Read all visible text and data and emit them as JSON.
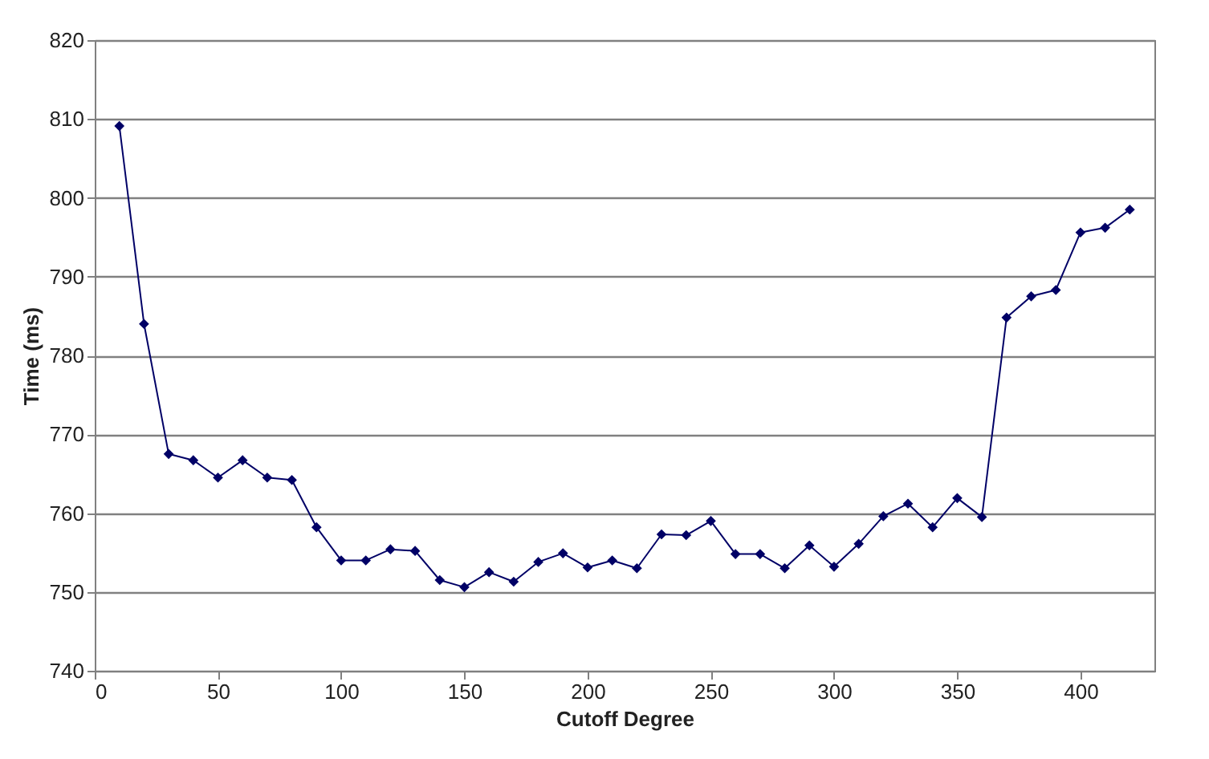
{
  "chart_data": {
    "type": "line",
    "xlabel": "Cutoff Degree",
    "ylabel": "Time (ms)",
    "x": [
      10,
      20,
      30,
      40,
      50,
      60,
      70,
      80,
      90,
      100,
      110,
      120,
      130,
      140,
      150,
      160,
      170,
      180,
      190,
      200,
      210,
      220,
      230,
      240,
      250,
      260,
      270,
      280,
      290,
      300,
      310,
      320,
      330,
      340,
      350,
      360,
      370,
      380,
      390,
      400,
      410,
      420
    ],
    "series": [
      {
        "color": "#000066",
        "values": [
          809.1,
          784.0,
          767.5,
          766.7,
          764.5,
          766.7,
          764.5,
          764.2,
          758.2,
          754.0,
          754.0,
          755.4,
          755.2,
          751.5,
          750.6,
          752.5,
          751.3,
          753.8,
          754.9,
          753.1,
          754.0,
          753.0,
          757.3,
          757.2,
          759.0,
          754.8,
          754.8,
          753.0,
          755.9,
          753.2,
          756.1,
          759.6,
          761.2,
          758.2,
          761.9,
          759.5,
          784.8,
          787.5,
          788.3,
          795.6,
          796.2,
          798.5
        ]
      }
    ],
    "xlim": [
      0,
      430
    ],
    "xticks": [
      0,
      50,
      100,
      150,
      200,
      250,
      300,
      350,
      400
    ],
    "ylim": [
      740,
      820
    ],
    "yticks": [
      740,
      750,
      760,
      770,
      780,
      790,
      800,
      810,
      820
    ],
    "grid": "y",
    "marker": "diamond",
    "line_style": "solid",
    "legend": false
  }
}
